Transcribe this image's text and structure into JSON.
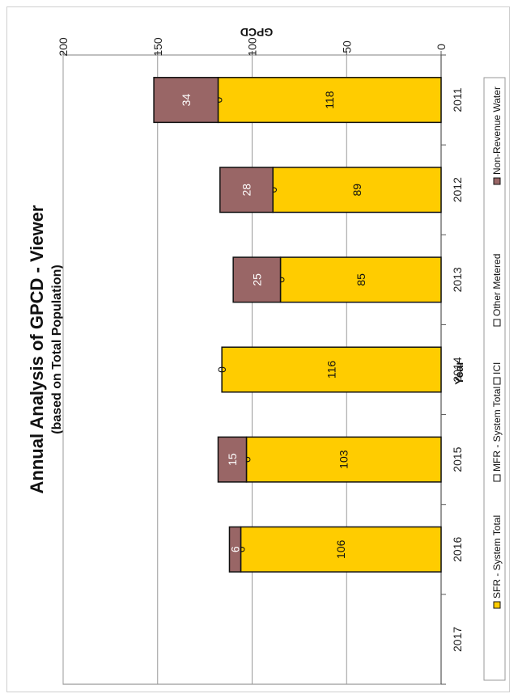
{
  "chart_data": {
    "type": "bar",
    "stacked": true,
    "orientation": "vertical (page rotated 90° counter-clockwise)",
    "title": "Annual Analysis of GPCD - Viewer",
    "subtitle": "(based on Total Population)",
    "xlabel": "Year",
    "ylabel": "GPCD",
    "ylim": [
      0,
      200
    ],
    "yticks": [
      "0",
      "50",
      "100",
      "150",
      "200"
    ],
    "categories": [
      "2011",
      "2012",
      "2013",
      "2014",
      "2015",
      "2016",
      "2017"
    ],
    "series": [
      {
        "name": "SFR - System Total",
        "color": "#FFCC00",
        "values": [
          118,
          89,
          85,
          116,
          103,
          106,
          null
        ],
        "labels": [
          "118",
          "89",
          "85",
          "116",
          "103",
          "106",
          ""
        ]
      },
      {
        "name": "MFR - System Total",
        "color": "#FFFFFF",
        "values": [
          0,
          0,
          0,
          0,
          0,
          0,
          null
        ],
        "labels": [
          "0",
          "0",
          "0",
          "0",
          "0",
          "0",
          ""
        ]
      },
      {
        "name": "ICI",
        "color": "#FFFFFF",
        "values": [
          0,
          0,
          0,
          0,
          0,
          0,
          null
        ],
        "labels": [
          "",
          "",
          "",
          "",
          "",
          "",
          ""
        ]
      },
      {
        "name": "Other Metered",
        "color": "#FFFFFF",
        "values": [
          0,
          0,
          0,
          0,
          0,
          0,
          null
        ],
        "labels": [
          "",
          "",
          "",
          "",
          "",
          "",
          ""
        ]
      },
      {
        "name": "Non-Revenue Water",
        "color": "#996666",
        "values": [
          34,
          28,
          25,
          0,
          15,
          6,
          null
        ],
        "labels": [
          "34",
          "28",
          "25",
          "",
          "15",
          "6",
          ""
        ]
      }
    ],
    "grid": true,
    "legend_position": "bottom"
  }
}
